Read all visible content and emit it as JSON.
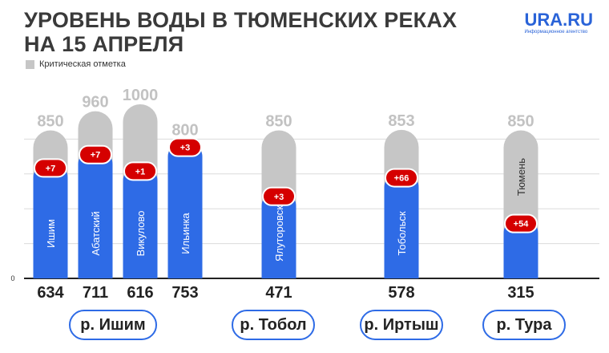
{
  "header": {
    "title_line1": "УРОВЕНЬ ВОДЫ В ТЮМЕНСКИХ РЕКАХ",
    "title_line2": "НА 15 АПРЕЛЯ",
    "logo": "URA.RU",
    "logo_sub": "Информационное агентство"
  },
  "legend": {
    "critical_label": "Критическая отметка"
  },
  "colors": {
    "current": "#2e6be6",
    "critical": "#c6c6c6",
    "badge": "#d50000",
    "grid": "#dcdcdc"
  },
  "chart_data": {
    "type": "bar",
    "title": "УРОВЕНЬ ВОДЫ В ТЮМЕНСКИХ РЕКАХ НА 15 АПРЕЛЯ",
    "xlabel": "",
    "ylabel": "",
    "y_tick_labels": [
      "0"
    ],
    "ylim": [
      0,
      1000
    ],
    "legend": [
      "Критическая отметка"
    ],
    "categories": [
      "Ишим",
      "Абатский",
      "Викулово",
      "Ильинка",
      "Ялуторовск",
      "Тобольск",
      "Тюмень"
    ],
    "values": [
      634,
      711,
      616,
      753,
      471,
      578,
      315
    ],
    "critical": [
      850,
      960,
      1000,
      800,
      850,
      853,
      850
    ],
    "change": [
      "+7",
      "+7",
      "+1",
      "+3",
      "+3",
      "+66",
      "+54"
    ],
    "rivers": [
      {
        "name": "р. Ишим",
        "stations": [
          "Ишим",
          "Абатский",
          "Викулово",
          "Ильинка"
        ]
      },
      {
        "name": "р. Тобол",
        "stations": [
          "Ялуторовск"
        ]
      },
      {
        "name": "р. Иртыш",
        "stations": [
          "Тобольск"
        ]
      },
      {
        "name": "р. Тура",
        "stations": [
          "Тюмень"
        ]
      }
    ]
  }
}
